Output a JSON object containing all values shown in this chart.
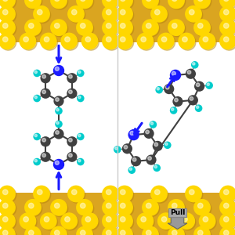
{
  "fig_width": 3.0,
  "fig_height": 3.0,
  "dpi": 100,
  "bg_color": "#ffffff",
  "gold_color": "#DAA520",
  "gold_highlight": "#FFD700",
  "gold_shadow": "#B8860B",
  "carbon_color": "#404040",
  "nitrogen_color": "#1a1aff",
  "hydrogen_color": "#00CCCC",
  "bond_color": "#404040",
  "arrow_color": "#1a1aff",
  "divider_color": "#cccccc",
  "pull_arrow_color": "#888888",
  "pull_text": "Pull"
}
